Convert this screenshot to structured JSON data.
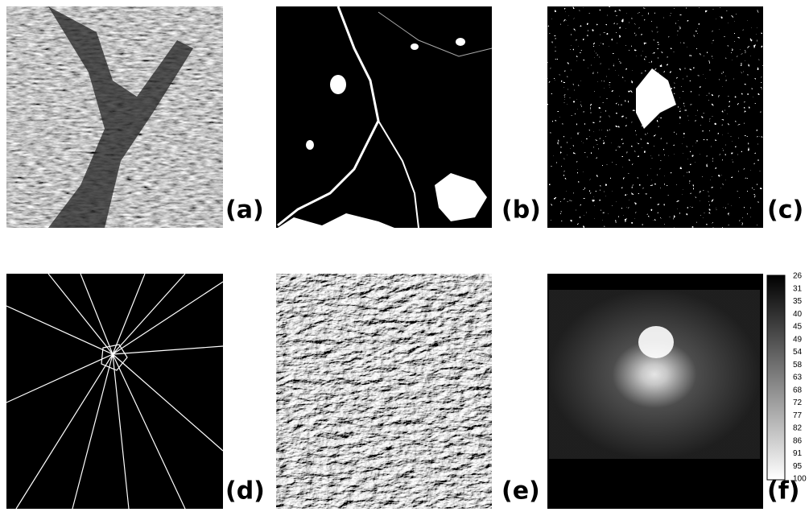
{
  "panels": [
    {
      "label": "(a)"
    },
    {
      "label": "(b)"
    },
    {
      "label": "(c)"
    },
    {
      "label": "(d)"
    },
    {
      "label": "(e)"
    },
    {
      "label": "(f)"
    }
  ],
  "colorbar": {
    "labels": [
      26,
      31,
      35,
      40,
      45,
      49,
      54,
      58,
      63,
      68,
      72,
      77,
      82,
      86,
      91,
      95,
      100
    ]
  }
}
